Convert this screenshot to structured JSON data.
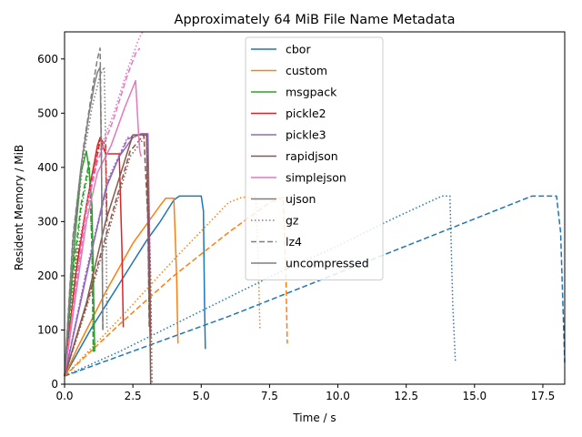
{
  "chart_data": {
    "type": "line",
    "title": "Approximately 64 MiB File Name Metadata",
    "xlabel": "Time / s",
    "ylabel": "Resident Memory / MiB",
    "xlim": [
      0,
      18.3
    ],
    "ylim": [
      0,
      650
    ],
    "xticks": [
      "0.0",
      "2.5",
      "5.0",
      "7.5",
      "10.0",
      "12.5",
      "15.0",
      "17.5"
    ],
    "xtick_values": [
      0,
      2.5,
      5,
      7.5,
      10,
      12.5,
      15,
      17.5
    ],
    "yticks": [
      "0",
      "100",
      "200",
      "300",
      "400",
      "500",
      "600"
    ],
    "ytick_values": [
      0,
      100,
      200,
      300,
      400,
      500,
      600
    ],
    "grid": false,
    "legend_position": "top-center",
    "legend": {
      "formats": [
        {
          "name": "cbor",
          "color": "#1f77b4"
        },
        {
          "name": "custom",
          "color": "#ff7f0e"
        },
        {
          "name": "msgpack",
          "color": "#2ca02c"
        },
        {
          "name": "pickle2",
          "color": "#d62728"
        },
        {
          "name": "pickle3",
          "color": "#9467bd"
        },
        {
          "name": "rapidjson",
          "color": "#8c564b"
        },
        {
          "name": "simplejson",
          "color": "#e377c2"
        },
        {
          "name": "ujson",
          "color": "#7f7f7f"
        }
      ],
      "compression": [
        {
          "name": "gz",
          "dash": "dotted"
        },
        {
          "name": "lz4",
          "dash": "dashed"
        },
        {
          "name": "uncompressed",
          "dash": "solid"
        }
      ]
    },
    "series": [
      {
        "format": "cbor",
        "compression": "uncompressed",
        "color": "#1f77b4",
        "dash": "solid",
        "x": [
          0,
          0.5,
          1.0,
          1.5,
          2.0,
          2.5,
          3.0,
          3.5,
          4.0,
          4.2,
          5.0,
          5.08,
          5.12,
          5.15
        ],
        "y": [
          15,
          60,
          105,
          145,
          185,
          225,
          265,
          300,
          340,
          347,
          347,
          320,
          150,
          65
        ]
      },
      {
        "format": "cbor",
        "compression": "gz",
        "color": "#1f77b4",
        "dash": "dotted",
        "x": [
          0,
          2,
          4,
          6,
          8,
          10,
          12,
          13.8,
          14.1,
          14.2,
          14.3
        ],
        "y": [
          15,
          60,
          110,
          160,
          210,
          255,
          305,
          347,
          347,
          150,
          40
        ]
      },
      {
        "format": "cbor",
        "compression": "lz4",
        "color": "#1f77b4",
        "dash": "dashed",
        "x": [
          0,
          3,
          6,
          9,
          12,
          15,
          17.1,
          18.0,
          18.15,
          18.3
        ],
        "y": [
          15,
          70,
          125,
          185,
          245,
          305,
          347,
          347,
          280,
          40
        ]
      },
      {
        "format": "custom",
        "compression": "uncompressed",
        "color": "#ff7f0e",
        "dash": "solid",
        "x": [
          0,
          0.5,
          1.0,
          1.5,
          2.0,
          2.5,
          3.0,
          3.5,
          3.7,
          4.0,
          4.1,
          4.15
        ],
        "y": [
          15,
          70,
          120,
          170,
          215,
          260,
          295,
          330,
          343,
          343,
          200,
          75
        ]
      },
      {
        "format": "custom",
        "compression": "gz",
        "color": "#ff7f0e",
        "dash": "dotted",
        "x": [
          0,
          2,
          4,
          6,
          6.5,
          7.0,
          7.1,
          7.15
        ],
        "y": [
          15,
          120,
          230,
          335,
          345,
          345,
          200,
          100
        ]
      },
      {
        "format": "custom",
        "compression": "lz4",
        "color": "#ff7f0e",
        "dash": "dashed",
        "x": [
          0,
          2,
          4,
          6,
          7.5,
          8.0,
          8.1,
          8.15
        ],
        "y": [
          15,
          110,
          200,
          280,
          335,
          345,
          200,
          75
        ]
      },
      {
        "format": "msgpack",
        "compression": "uncompressed",
        "color": "#2ca02c",
        "dash": "solid",
        "x": [
          0,
          0.2,
          0.4,
          0.6,
          0.8,
          0.9,
          1.0,
          1.05,
          1.1
        ],
        "y": [
          15,
          150,
          280,
          390,
          430,
          395,
          330,
          200,
          60
        ]
      },
      {
        "format": "msgpack",
        "compression": "gz",
        "color": "#2ca02c",
        "dash": "dotted",
        "x": [
          0,
          0.3,
          0.6,
          0.9,
          1.0,
          1.05
        ],
        "y": [
          15,
          180,
          320,
          400,
          260,
          60
        ]
      },
      {
        "format": "msgpack",
        "compression": "lz4",
        "color": "#2ca02c",
        "dash": "dashed",
        "x": [
          0,
          0.3,
          0.6,
          0.9,
          1.0,
          1.05
        ],
        "y": [
          15,
          200,
          330,
          410,
          250,
          60
        ]
      },
      {
        "format": "pickle2",
        "compression": "uncompressed",
        "color": "#d62728",
        "dash": "solid",
        "x": [
          0,
          0.4,
          0.8,
          1.2,
          1.3,
          1.4,
          1.5,
          1.8,
          2.0,
          2.1,
          2.15
        ],
        "y": [
          15,
          200,
          330,
          440,
          455,
          440,
          425,
          425,
          425,
          250,
          105
        ]
      },
      {
        "format": "pickle2",
        "compression": "gz",
        "color": "#d62728",
        "dash": "dotted",
        "x": [
          0,
          0.5,
          1.0,
          1.3,
          1.5,
          1.55
        ],
        "y": [
          15,
          250,
          380,
          455,
          440,
          300
        ]
      },
      {
        "format": "pickle2",
        "compression": "lz4",
        "color": "#d62728",
        "dash": "dashed",
        "x": [
          0,
          0.5,
          1.0,
          1.3,
          1.5,
          1.55
        ],
        "y": [
          15,
          240,
          370,
          450,
          445,
          300
        ]
      },
      {
        "format": "pickle3",
        "compression": "uncompressed",
        "color": "#9467bd",
        "dash": "solid",
        "x": [
          0,
          0.8,
          1.5,
          2.0,
          2.5,
          2.8,
          3.05,
          3.1,
          3.15
        ],
        "y": [
          15,
          200,
          360,
          420,
          455,
          462,
          462,
          300,
          90
        ]
      },
      {
        "format": "pickle3",
        "compression": "gz",
        "color": "#9467bd",
        "dash": "dotted",
        "x": [
          0,
          0.8,
          1.6,
          2.3,
          2.8,
          3.0,
          3.1
        ],
        "y": [
          15,
          210,
          380,
          455,
          462,
          460,
          120
        ]
      },
      {
        "format": "pickle3",
        "compression": "lz4",
        "color": "#9467bd",
        "dash": "dashed",
        "x": [
          0,
          0.8,
          1.6,
          2.3,
          2.8,
          3.0,
          3.1
        ],
        "y": [
          15,
          205,
          375,
          452,
          462,
          460,
          110
        ]
      },
      {
        "format": "rapidjson",
        "compression": "uncompressed",
        "color": "#8c564b",
        "dash": "solid",
        "x": [
          0,
          0.8,
          1.5,
          2.0,
          2.5,
          3.0,
          3.1,
          3.15
        ],
        "y": [
          15,
          150,
          300,
          380,
          460,
          460,
          200,
          0
        ]
      },
      {
        "format": "rapidjson",
        "compression": "gz",
        "color": "#8c564b",
        "dash": "dotted",
        "x": [
          0,
          0.8,
          1.6,
          2.4,
          3.0,
          3.15,
          3.2
        ],
        "y": [
          15,
          140,
          280,
          420,
          460,
          200,
          0
        ]
      },
      {
        "format": "rapidjson",
        "compression": "lz4",
        "color": "#8c564b",
        "dash": "dashed",
        "x": [
          0,
          0.8,
          1.6,
          2.4,
          2.9,
          3.05,
          3.1
        ],
        "y": [
          15,
          145,
          290,
          430,
          460,
          300,
          100
        ]
      },
      {
        "format": "simplejson",
        "compression": "uncompressed",
        "color": "#e377c2",
        "dash": "solid",
        "x": [
          0,
          0.4,
          0.8,
          1.2,
          1.7,
          2.2,
          2.6,
          2.7,
          2.75,
          2.8
        ],
        "y": [
          15,
          160,
          300,
          390,
          440,
          510,
          560,
          470,
          430,
          420
        ]
      },
      {
        "format": "simplejson",
        "compression": "gz",
        "color": "#e377c2",
        "dash": "dotted",
        "x": [
          0,
          0.4,
          0.8,
          1.2,
          1.8,
          2.3,
          2.7,
          2.85
        ],
        "y": [
          15,
          180,
          330,
          420,
          500,
          580,
          635,
          650
        ]
      },
      {
        "format": "simplejson",
        "compression": "lz4",
        "color": "#e377c2",
        "dash": "dashed",
        "x": [
          0,
          0.4,
          0.8,
          1.2,
          1.8,
          2.3,
          2.6,
          2.75
        ],
        "y": [
          15,
          175,
          320,
          410,
          490,
          570,
          610,
          620
        ]
      },
      {
        "format": "ujson",
        "compression": "uncompressed",
        "color": "#7f7f7f",
        "dash": "solid",
        "x": [
          0,
          0.3,
          0.6,
          0.9,
          1.1,
          1.2,
          1.3,
          1.35,
          1.4
        ],
        "y": [
          15,
          260,
          400,
          500,
          555,
          575,
          585,
          400,
          100
        ]
      },
      {
        "format": "ujson",
        "compression": "gz",
        "color": "#7f7f7f",
        "dash": "dotted",
        "x": [
          0,
          0.3,
          0.7,
          1.0,
          1.3,
          1.45,
          1.5,
          1.55
        ],
        "y": [
          15,
          240,
          420,
          510,
          570,
          585,
          450,
          100
        ]
      },
      {
        "format": "ujson",
        "compression": "lz4",
        "color": "#7f7f7f",
        "dash": "dashed",
        "x": [
          0,
          0.3,
          0.7,
          1.0,
          1.2,
          1.3,
          1.35,
          1.4
        ],
        "y": [
          15,
          270,
          440,
          540,
          600,
          620,
          430,
          100
        ]
      }
    ]
  }
}
